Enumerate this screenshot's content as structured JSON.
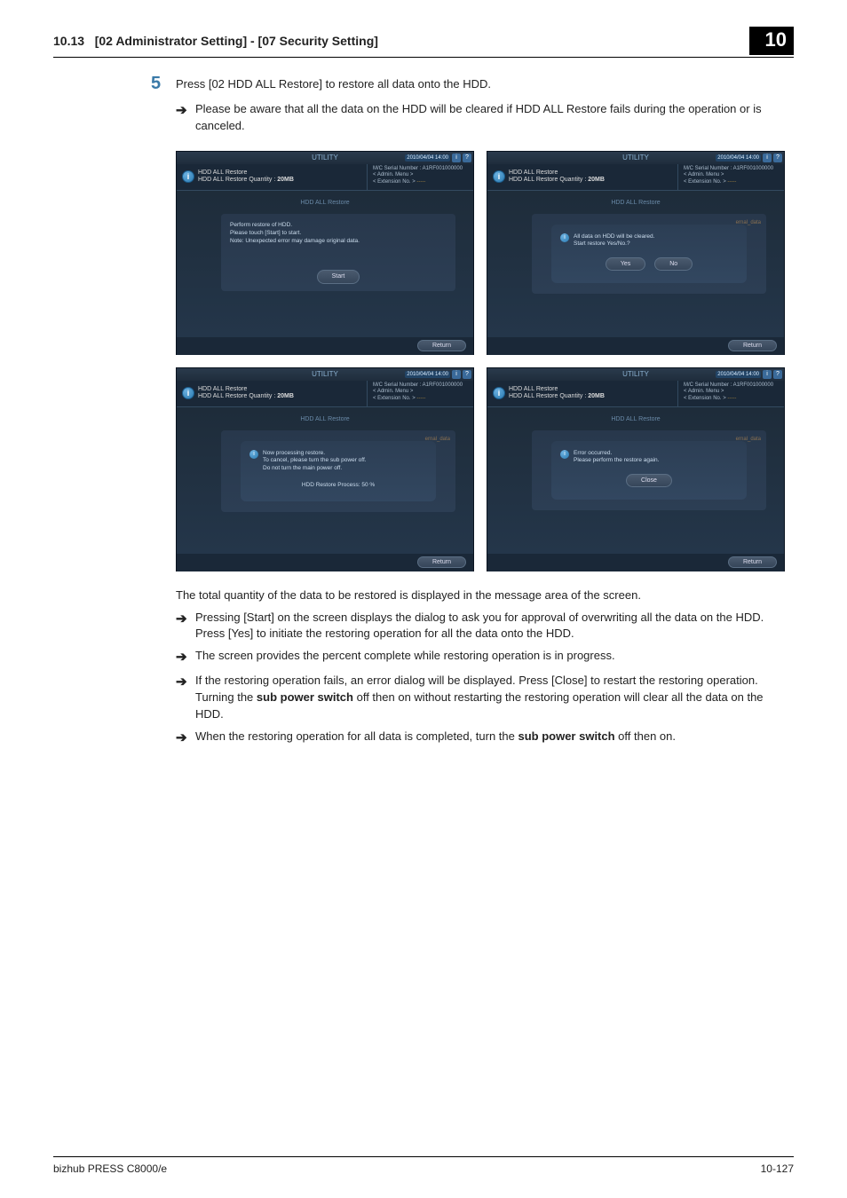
{
  "header": {
    "section": "10.13",
    "title": "[02 Administrator Setting] - [07 Security Setting]",
    "chapter": "10"
  },
  "step": {
    "number": "5",
    "text": "Press [02 HDD ALL Restore] to restore all data onto the HDD.",
    "note": "Please be aware that all the data on the HDD will be cleared if HDD ALL Restore fails during the operation or is canceled."
  },
  "scr_common": {
    "utility_label": "UTILITY",
    "timestamp": "2010/04/04 14:00",
    "title1": "HDD ALL Restore",
    "title2": "HDD ALL Restore Quantity",
    "qty": "20MB",
    "serial_label": "M/C Serial Number : A1RF001000000",
    "admin_label": "< Admin. Menu >",
    "ext_label": "< Extension No. >",
    "ext_dash": "-----",
    "subtitle": "HDD ALL Restore",
    "return_label": "Return",
    "panel_tag": "ernal_data"
  },
  "scr1": {
    "line1": "Perform restore of HDD.",
    "line2": "Please touch [Start] to start.",
    "line3": "Note: Unexpected error may damage original data.",
    "start_label": "Start"
  },
  "scr2": {
    "line1": "All data on HDD will be cleared.",
    "line2": "Start restore Yes/No.?",
    "yes_label": "Yes",
    "no_label": "No"
  },
  "scr3": {
    "line1": "Now processing restore.",
    "line2": "To cancel, please turn the sub power off.",
    "line3": "Do not turn the main power off.",
    "progress": "HDD Restore Process: 50  %"
  },
  "scr4": {
    "line1": "Error occurred.",
    "line2": "Please perform the restore again.",
    "close_label": "Close"
  },
  "post_text": "The total quantity of the data to be restored is displayed in the message area of the screen.",
  "bullets": {
    "b1": "Pressing [Start] on the screen displays the dialog to ask you for approval of overwriting all the data on the HDD. Press [Yes] to initiate the restoring operation for all the data onto the HDD.",
    "b2": "The screen provides the percent complete while restoring operation is in progress.",
    "b3a": "If the restoring operation fails, an error dialog will be displayed. Press [Close] to restart the restoring operation. Turning the ",
    "b3b": "sub power switch",
    "b3c": " off then on without restarting the restoring operation will clear all the data on the HDD.",
    "b4a": "When the restoring operation for all data is completed, turn the ",
    "b4b": "sub power switch",
    "b4c": " off then on."
  },
  "footer": {
    "left": "bizhub PRESS C8000/e",
    "right": "10-127"
  },
  "icons": {
    "info": "i",
    "help": "?"
  }
}
